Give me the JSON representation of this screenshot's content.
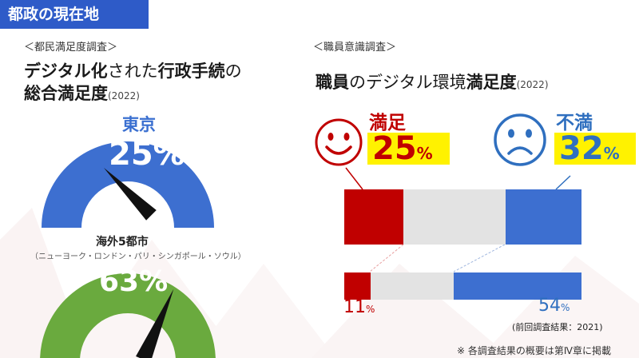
{
  "banner": {
    "title": "都政の現在地"
  },
  "left": {
    "section_label": "＜都民満足度調査＞",
    "title_line1_a": "デジタル化",
    "title_line1_b": "された",
    "title_line1_c": "行政手続",
    "title_line1_d": "の",
    "title_line2": "総合満足度",
    "title_year": "(2022)",
    "tokyo": {
      "label": "東京",
      "value": "25",
      "unit": "%",
      "fraction": 0.25,
      "color": "#3d6fd0"
    },
    "overseas": {
      "label": "海外5都市",
      "cities": "（ニューヨーク・ロンドン・パリ・シンガポール・ソウル）",
      "value": "63",
      "unit": "%",
      "fraction": 0.63,
      "color": "#6aaa3e"
    }
  },
  "right": {
    "section_label": "＜職員意識調査＞",
    "title_a": "職員",
    "title_b": "の",
    "title_c": "デジタル環境",
    "title_d": "満足度",
    "title_year": "(2022)",
    "satisfied": {
      "label": "満足",
      "value": "25",
      "unit": "%"
    },
    "dissatisfied": {
      "label": "不満",
      "value": "32",
      "unit": "%"
    },
    "bar_2022": {
      "satisfied": 0.25,
      "neutral": 0.43,
      "dissatisfied": 0.32
    },
    "bar_2021": {
      "satisfied": 0.11,
      "neutral": 0.35,
      "dissatisfied": 0.54
    },
    "prev_sat": {
      "value": "11",
      "unit": "%"
    },
    "prev_dis": {
      "value": "54",
      "unit": "%"
    },
    "prev_note": "(前回調査結果：2021)"
  },
  "footnote": "※ 各調査結果の概要は第Ⅳ章に掲載",
  "colors": {
    "red": "#c00000",
    "blue": "#3d6fd0",
    "gray": "#e3e3e3",
    "highlight": "#fff200"
  }
}
